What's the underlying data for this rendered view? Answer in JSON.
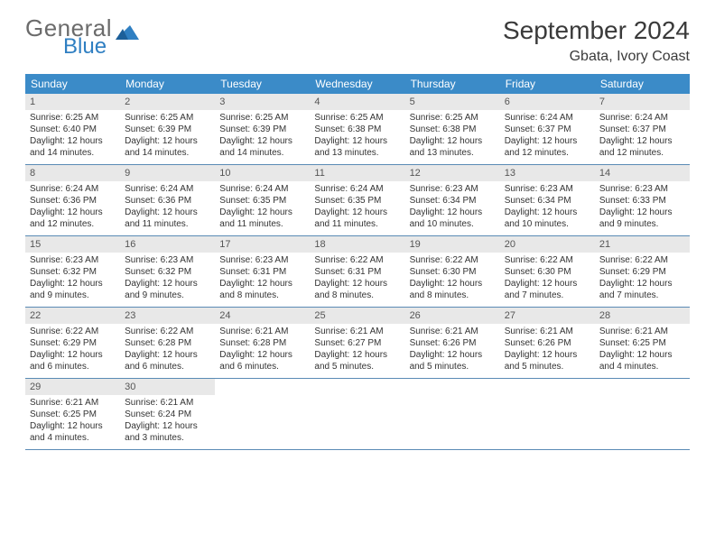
{
  "brand": {
    "line1": "General",
    "line2": "Blue"
  },
  "title": "September 2024",
  "location": "Gbata, Ivory Coast",
  "colors": {
    "header_bg": "#3b8bc8",
    "header_text": "#ffffff",
    "daynum_bg": "#e8e8e8",
    "daynum_text": "#555555",
    "text": "#333333",
    "row_border": "#5a8bb5",
    "logo_gray": "#6b6b6b",
    "logo_blue": "#2f7fc2",
    "background": "#ffffff"
  },
  "typography": {
    "title_fontsize": 28,
    "location_fontsize": 16,
    "dayheader_fontsize": 12,
    "daynum_fontsize": 11,
    "cell_fontsize": 10
  },
  "day_names": [
    "Sunday",
    "Monday",
    "Tuesday",
    "Wednesday",
    "Thursday",
    "Friday",
    "Saturday"
  ],
  "days": [
    {
      "n": "1",
      "sunrise": "Sunrise: 6:25 AM",
      "sunset": "Sunset: 6:40 PM",
      "dl1": "Daylight: 12 hours",
      "dl2": "and 14 minutes."
    },
    {
      "n": "2",
      "sunrise": "Sunrise: 6:25 AM",
      "sunset": "Sunset: 6:39 PM",
      "dl1": "Daylight: 12 hours",
      "dl2": "and 14 minutes."
    },
    {
      "n": "3",
      "sunrise": "Sunrise: 6:25 AM",
      "sunset": "Sunset: 6:39 PM",
      "dl1": "Daylight: 12 hours",
      "dl2": "and 14 minutes."
    },
    {
      "n": "4",
      "sunrise": "Sunrise: 6:25 AM",
      "sunset": "Sunset: 6:38 PM",
      "dl1": "Daylight: 12 hours",
      "dl2": "and 13 minutes."
    },
    {
      "n": "5",
      "sunrise": "Sunrise: 6:25 AM",
      "sunset": "Sunset: 6:38 PM",
      "dl1": "Daylight: 12 hours",
      "dl2": "and 13 minutes."
    },
    {
      "n": "6",
      "sunrise": "Sunrise: 6:24 AM",
      "sunset": "Sunset: 6:37 PM",
      "dl1": "Daylight: 12 hours",
      "dl2": "and 12 minutes."
    },
    {
      "n": "7",
      "sunrise": "Sunrise: 6:24 AM",
      "sunset": "Sunset: 6:37 PM",
      "dl1": "Daylight: 12 hours",
      "dl2": "and 12 minutes."
    },
    {
      "n": "8",
      "sunrise": "Sunrise: 6:24 AM",
      "sunset": "Sunset: 6:36 PM",
      "dl1": "Daylight: 12 hours",
      "dl2": "and 12 minutes."
    },
    {
      "n": "9",
      "sunrise": "Sunrise: 6:24 AM",
      "sunset": "Sunset: 6:36 PM",
      "dl1": "Daylight: 12 hours",
      "dl2": "and 11 minutes."
    },
    {
      "n": "10",
      "sunrise": "Sunrise: 6:24 AM",
      "sunset": "Sunset: 6:35 PM",
      "dl1": "Daylight: 12 hours",
      "dl2": "and 11 minutes."
    },
    {
      "n": "11",
      "sunrise": "Sunrise: 6:24 AM",
      "sunset": "Sunset: 6:35 PM",
      "dl1": "Daylight: 12 hours",
      "dl2": "and 11 minutes."
    },
    {
      "n": "12",
      "sunrise": "Sunrise: 6:23 AM",
      "sunset": "Sunset: 6:34 PM",
      "dl1": "Daylight: 12 hours",
      "dl2": "and 10 minutes."
    },
    {
      "n": "13",
      "sunrise": "Sunrise: 6:23 AM",
      "sunset": "Sunset: 6:34 PM",
      "dl1": "Daylight: 12 hours",
      "dl2": "and 10 minutes."
    },
    {
      "n": "14",
      "sunrise": "Sunrise: 6:23 AM",
      "sunset": "Sunset: 6:33 PM",
      "dl1": "Daylight: 12 hours",
      "dl2": "and 9 minutes."
    },
    {
      "n": "15",
      "sunrise": "Sunrise: 6:23 AM",
      "sunset": "Sunset: 6:32 PM",
      "dl1": "Daylight: 12 hours",
      "dl2": "and 9 minutes."
    },
    {
      "n": "16",
      "sunrise": "Sunrise: 6:23 AM",
      "sunset": "Sunset: 6:32 PM",
      "dl1": "Daylight: 12 hours",
      "dl2": "and 9 minutes."
    },
    {
      "n": "17",
      "sunrise": "Sunrise: 6:23 AM",
      "sunset": "Sunset: 6:31 PM",
      "dl1": "Daylight: 12 hours",
      "dl2": "and 8 minutes."
    },
    {
      "n": "18",
      "sunrise": "Sunrise: 6:22 AM",
      "sunset": "Sunset: 6:31 PM",
      "dl1": "Daylight: 12 hours",
      "dl2": "and 8 minutes."
    },
    {
      "n": "19",
      "sunrise": "Sunrise: 6:22 AM",
      "sunset": "Sunset: 6:30 PM",
      "dl1": "Daylight: 12 hours",
      "dl2": "and 8 minutes."
    },
    {
      "n": "20",
      "sunrise": "Sunrise: 6:22 AM",
      "sunset": "Sunset: 6:30 PM",
      "dl1": "Daylight: 12 hours",
      "dl2": "and 7 minutes."
    },
    {
      "n": "21",
      "sunrise": "Sunrise: 6:22 AM",
      "sunset": "Sunset: 6:29 PM",
      "dl1": "Daylight: 12 hours",
      "dl2": "and 7 minutes."
    },
    {
      "n": "22",
      "sunrise": "Sunrise: 6:22 AM",
      "sunset": "Sunset: 6:29 PM",
      "dl1": "Daylight: 12 hours",
      "dl2": "and 6 minutes."
    },
    {
      "n": "23",
      "sunrise": "Sunrise: 6:22 AM",
      "sunset": "Sunset: 6:28 PM",
      "dl1": "Daylight: 12 hours",
      "dl2": "and 6 minutes."
    },
    {
      "n": "24",
      "sunrise": "Sunrise: 6:21 AM",
      "sunset": "Sunset: 6:28 PM",
      "dl1": "Daylight: 12 hours",
      "dl2": "and 6 minutes."
    },
    {
      "n": "25",
      "sunrise": "Sunrise: 6:21 AM",
      "sunset": "Sunset: 6:27 PM",
      "dl1": "Daylight: 12 hours",
      "dl2": "and 5 minutes."
    },
    {
      "n": "26",
      "sunrise": "Sunrise: 6:21 AM",
      "sunset": "Sunset: 6:26 PM",
      "dl1": "Daylight: 12 hours",
      "dl2": "and 5 minutes."
    },
    {
      "n": "27",
      "sunrise": "Sunrise: 6:21 AM",
      "sunset": "Sunset: 6:26 PM",
      "dl1": "Daylight: 12 hours",
      "dl2": "and 5 minutes."
    },
    {
      "n": "28",
      "sunrise": "Sunrise: 6:21 AM",
      "sunset": "Sunset: 6:25 PM",
      "dl1": "Daylight: 12 hours",
      "dl2": "and 4 minutes."
    },
    {
      "n": "29",
      "sunrise": "Sunrise: 6:21 AM",
      "sunset": "Sunset: 6:25 PM",
      "dl1": "Daylight: 12 hours",
      "dl2": "and 4 minutes."
    },
    {
      "n": "30",
      "sunrise": "Sunrise: 6:21 AM",
      "sunset": "Sunset: 6:24 PM",
      "dl1": "Daylight: 12 hours",
      "dl2": "and 3 minutes."
    }
  ]
}
